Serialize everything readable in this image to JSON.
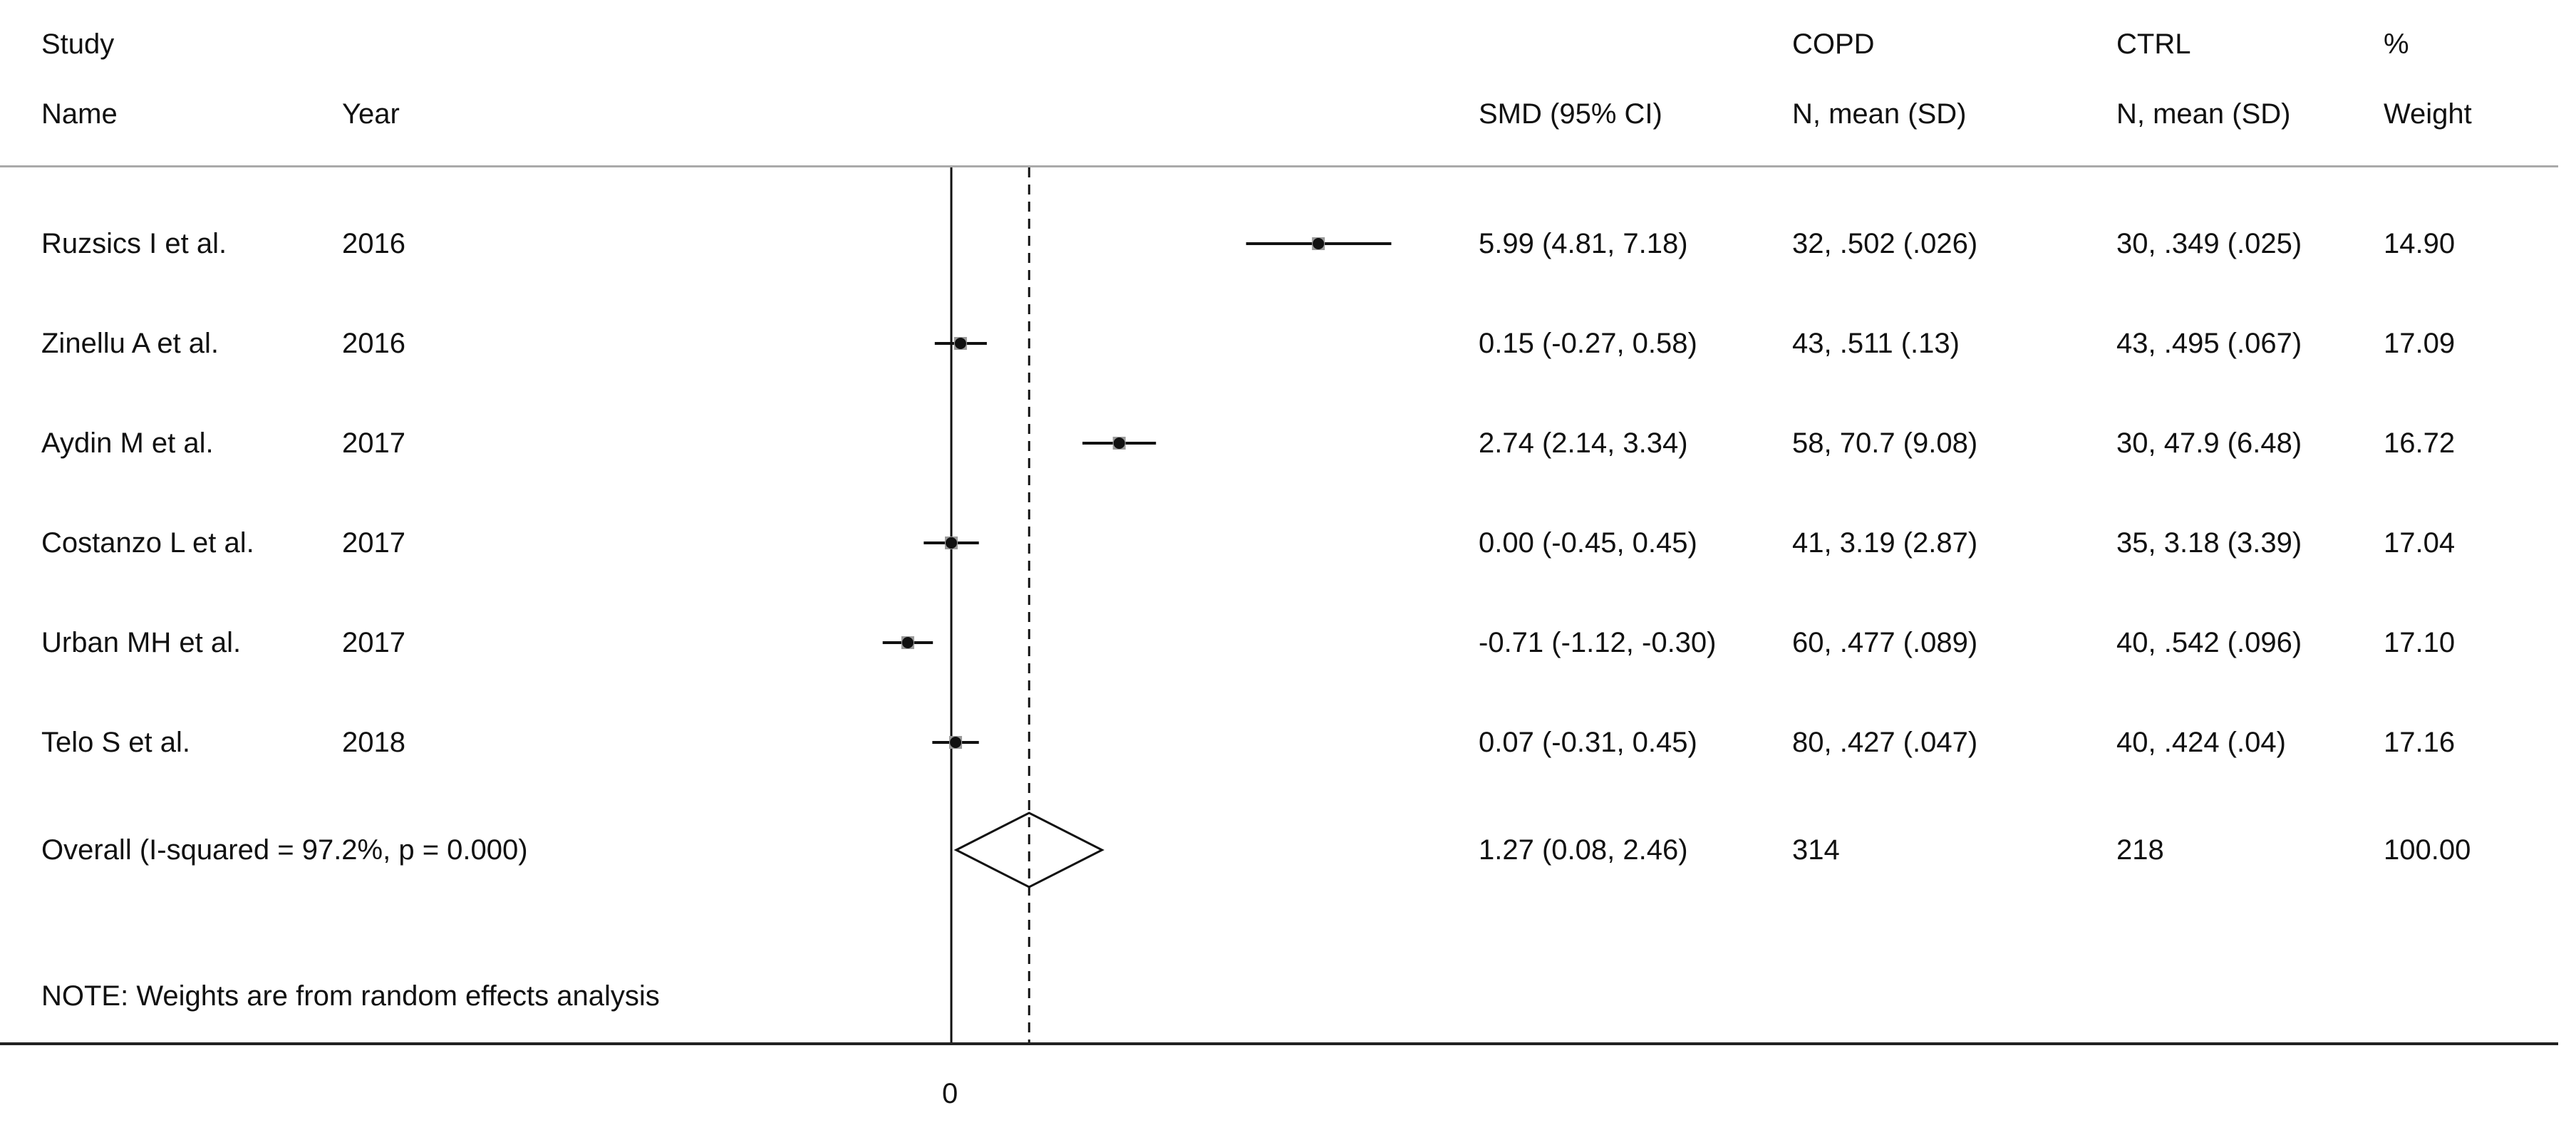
{
  "header": {
    "col1_line1": "Study",
    "col1_line2": "Name",
    "col2": "Year",
    "col3": "SMD (95% CI)",
    "col4_line1": "COPD",
    "col4_line2": "N, mean (SD)",
    "col5_line1": "CTRL",
    "col5_line2": "N, mean (SD)",
    "col6_line1": "%",
    "col6_line2": "Weight"
  },
  "footer": {
    "note": "NOTE: Weights are from random effects analysis",
    "axis_zero_label": "0"
  },
  "chart_data": {
    "type": "forest",
    "title": "",
    "xlabel": "",
    "null_value": 0,
    "studies": [
      {
        "name": "Ruzsics I et al.",
        "year": "2016",
        "smd": 5.99,
        "lo": 4.81,
        "hi": 7.18,
        "smd_text": "5.99 (4.81, 7.18)",
        "copd": "32, .502 (.026)",
        "ctrl": "30, .349 (.025)",
        "weight": "14.90"
      },
      {
        "name": "Zinellu A et al.",
        "year": "2016",
        "smd": 0.15,
        "lo": -0.27,
        "hi": 0.58,
        "smd_text": "0.15 (-0.27, 0.58)",
        "copd": "43, .511 (.13)",
        "ctrl": "43, .495 (.067)",
        "weight": "17.09"
      },
      {
        "name": "Aydin M et al.",
        "year": "2017",
        "smd": 2.74,
        "lo": 2.14,
        "hi": 3.34,
        "smd_text": "2.74 (2.14, 3.34)",
        "copd": "58, 70.7 (9.08)",
        "ctrl": "30, 47.9 (6.48)",
        "weight": "16.72"
      },
      {
        "name": "Costanzo L et al.",
        "year": "2017",
        "smd": 0.0,
        "lo": -0.45,
        "hi": 0.45,
        "smd_text": "0.00 (-0.45, 0.45)",
        "copd": "41, 3.19 (2.87)",
        "ctrl": "35, 3.18 (3.39)",
        "weight": "17.04"
      },
      {
        "name": "Urban MH et al.",
        "year": "2017",
        "smd": -0.71,
        "lo": -1.12,
        "hi": -0.3,
        "smd_text": "-0.71 (-1.12, -0.30)",
        "copd": "60, .477 (.089)",
        "ctrl": "40, .542 (.096)",
        "weight": "17.10"
      },
      {
        "name": "Telo S et al.",
        "year": "2018",
        "smd": 0.07,
        "lo": -0.31,
        "hi": 0.45,
        "smd_text": "0.07 (-0.31, 0.45)",
        "copd": "80, .427 (.047)",
        "ctrl": "40, .424 (.04)",
        "weight": "17.16"
      }
    ],
    "overall": {
      "label": "Overall  (I-squared = 97.2%, p = 0.000)",
      "smd": 1.27,
      "lo": 0.08,
      "hi": 2.46,
      "smd_text": "1.27 (0.08, 2.46)",
      "copd": "314",
      "ctrl": "218",
      "weight": "100.00"
    }
  }
}
